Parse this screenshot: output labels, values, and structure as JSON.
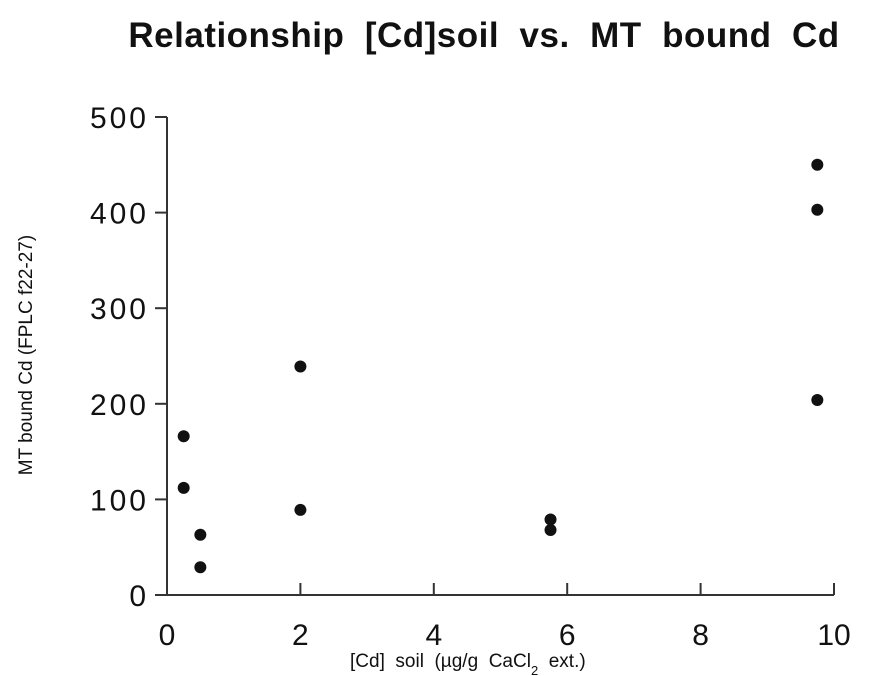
{
  "chart_data": {
    "type": "scatter",
    "title": "Relationship  [Cd]soil  vs.  MT  bound  Cd",
    "xlabel": "[Cd]  soil  (µg/g  CaCl",
    "xlabel_subscript": "2",
    "xlabel_suffix": "  ext.)",
    "ylabel": "MT bound Cd (FPLC f22-27)",
    "xlim": [
      0,
      10
    ],
    "ylim": [
      0,
      500
    ],
    "xticks": [
      0,
      2,
      4,
      6,
      8,
      10
    ],
    "yticks": [
      0,
      100,
      200,
      300,
      400,
      500
    ],
    "grid": false,
    "points": [
      {
        "x": 0.25,
        "y": 166
      },
      {
        "x": 0.25,
        "y": 112
      },
      {
        "x": 0.5,
        "y": 63
      },
      {
        "x": 0.5,
        "y": 29
      },
      {
        "x": 2.0,
        "y": 239
      },
      {
        "x": 2.0,
        "y": 89
      },
      {
        "x": 5.75,
        "y": 79
      },
      {
        "x": 5.75,
        "y": 68
      },
      {
        "x": 9.75,
        "y": 450
      },
      {
        "x": 9.75,
        "y": 403
      },
      {
        "x": 9.75,
        "y": 204
      }
    ]
  }
}
